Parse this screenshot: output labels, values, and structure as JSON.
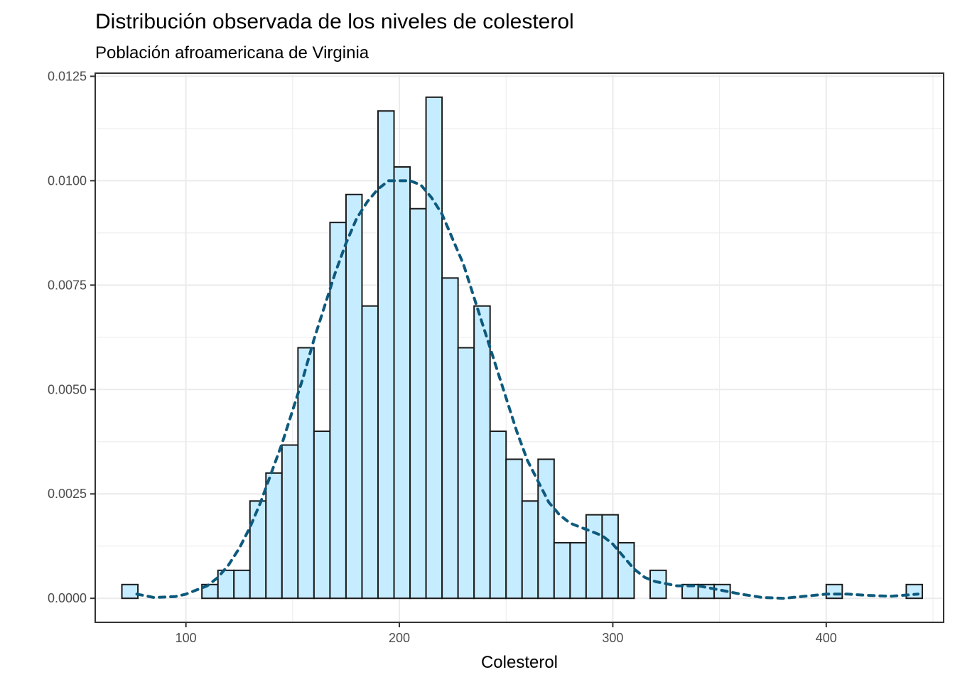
{
  "chart_data": {
    "type": "bar",
    "title": "Distribución observada de los niveles de colesterol",
    "subtitle": "Población afroamericana de Virginia",
    "xlabel": "Colesterol",
    "ylabel": "",
    "xlim": [
      57.5,
      455
    ],
    "ylim": [
      -0.000575,
      0.012575
    ],
    "x_ticks": [
      100,
      200,
      300,
      400
    ],
    "y_ticks": [
      0.0,
      0.0025,
      0.005,
      0.0075,
      0.01,
      0.0125
    ],
    "x_tick_labels": [
      "100",
      "200",
      "300",
      "400"
    ],
    "y_tick_labels": [
      "0.0000",
      "0.0025",
      "0.0050",
      "0.0075",
      "0.0100",
      "0.0125"
    ],
    "grid": true,
    "bin_width": 7.5,
    "bin_starts": [
      70,
      77.5,
      85,
      92.5,
      100,
      107.5,
      115,
      122.5,
      130,
      137.5,
      145,
      152.5,
      160,
      167.5,
      175,
      182.5,
      190,
      197.5,
      205,
      212.5,
      220,
      227.5,
      235,
      242.5,
      250,
      257.5,
      265,
      272.5,
      280,
      287.5,
      295,
      302.5,
      310,
      317.5,
      325,
      332.5,
      340,
      347.5,
      355,
      362.5,
      370,
      377.5,
      385,
      392.5,
      400,
      407.5,
      415,
      422.5,
      430,
      437.5
    ],
    "values": [
      0.00033,
      0,
      0,
      0,
      0,
      0.00033,
      0.00067,
      0.00067,
      0.00233,
      0.003,
      0.00367,
      0.006,
      0.004,
      0.009,
      0.00967,
      0.007,
      0.01167,
      0.01033,
      0.00933,
      0.012,
      0.00767,
      0.006,
      0.007,
      0.004,
      0.00333,
      0.00233,
      0.00333,
      0.00133,
      0.00133,
      0.002,
      0.002,
      0.00133,
      0,
      0.00067,
      0,
      0.00033,
      0.00033,
      0.00033,
      0,
      0,
      0,
      0,
      0,
      0,
      0.00033,
      0,
      0,
      0,
      0,
      0.00033
    ],
    "density_curve": {
      "x": [
        77,
        85,
        95,
        100,
        105,
        110,
        115,
        120,
        125,
        130,
        135,
        140,
        145,
        150,
        155,
        160,
        165,
        170,
        175,
        180,
        185,
        190,
        195,
        200,
        205,
        210,
        215,
        220,
        225,
        230,
        235,
        240,
        245,
        250,
        255,
        260,
        265,
        270,
        275,
        280,
        285,
        290,
        295,
        300,
        305,
        310,
        315,
        320,
        330,
        340,
        350,
        360,
        370,
        380,
        390,
        400,
        410,
        420,
        430,
        443
      ],
      "y": [
        0.0001,
        2e-05,
        4e-05,
        0.0001,
        0.0002,
        0.0003,
        0.0005,
        0.0008,
        0.0012,
        0.0017,
        0.0023,
        0.003,
        0.0037,
        0.0045,
        0.0053,
        0.0062,
        0.007,
        0.0078,
        0.0085,
        0.0091,
        0.0095,
        0.0098,
        0.01,
        0.01,
        0.01,
        0.0099,
        0.0096,
        0.0092,
        0.0086,
        0.008,
        0.0072,
        0.0064,
        0.0056,
        0.0048,
        0.004,
        0.0033,
        0.0028,
        0.0023,
        0.002,
        0.0018,
        0.0017,
        0.0016,
        0.0015,
        0.0013,
        0.001,
        0.0007,
        0.0005,
        0.0004,
        0.0003,
        0.0003,
        0.0002,
        0.0001,
        2e-05,
        0.0,
        5e-05,
        0.0001,
        0.0001,
        7e-05,
        5e-05,
        0.0001
      ]
    },
    "colors": {
      "bar_fill": "#c6ecff",
      "bar_stroke": "#1a1a1a",
      "curve": "#0d5a7d",
      "grid": "#ebebeb",
      "panel_border": "#333333",
      "tick_label": "#4d4d4d"
    }
  }
}
